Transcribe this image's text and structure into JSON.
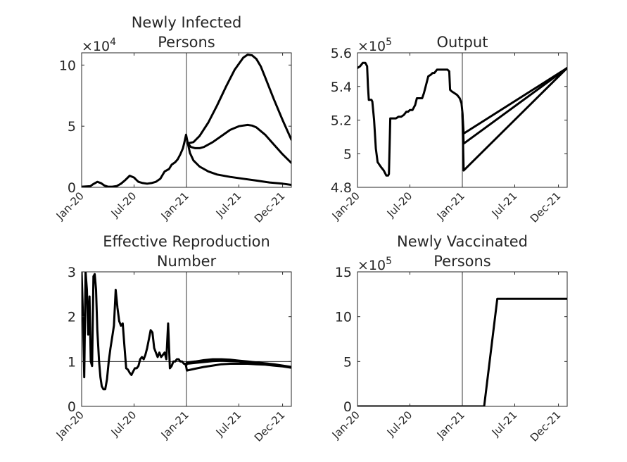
{
  "figure": {
    "background": "#ffffff",
    "line_color": "#000000",
    "text_color": "#262626"
  },
  "chart_data": [
    {
      "type": "line",
      "title": [
        "Newly Infected",
        "Persons"
      ],
      "exponent": {
        "base": "×10",
        "power": "4"
      },
      "xlabel": "",
      "ylabel": "",
      "x_ticks": [
        "Jan-20",
        "Jul-20",
        "Jan-21",
        "Jul-21",
        "Dec-21"
      ],
      "x_tick_months": [
        0,
        6,
        12,
        18,
        23
      ],
      "xlim_months": [
        0,
        24
      ],
      "ylim": [
        0,
        11
      ],
      "y_ticks": [
        0,
        5,
        10
      ],
      "y_tick_labels": [
        "0",
        "5",
        "10"
      ],
      "vline_month": 12,
      "grid": false,
      "series": [
        {
          "x": [
            0,
            1,
            1.3,
            1.8,
            2.2,
            2.6,
            3,
            3.5,
            4,
            4.5,
            5,
            5.5,
            6,
            6.2,
            6.5,
            7,
            7.5,
            8,
            8.5,
            9,
            9.5,
            10,
            10.3,
            10.7,
            11,
            11.3,
            11.6,
            11.8,
            11.95,
            12.15,
            12.4,
            12.8,
            13.5,
            14.5,
            15.5,
            17,
            18.5,
            20,
            21.5,
            23,
            24
          ],
          "y": [
            0.05,
            0.1,
            0.25,
            0.45,
            0.35,
            0.15,
            0.05,
            0.05,
            0.1,
            0.3,
            0.6,
            0.95,
            0.8,
            0.65,
            0.45,
            0.35,
            0.3,
            0.35,
            0.45,
            0.7,
            1.3,
            1.5,
            1.85,
            2.05,
            2.3,
            2.7,
            3.2,
            3.8,
            4.3,
            3.6,
            2.8,
            2.2,
            1.7,
            1.3,
            1.05,
            0.85,
            0.7,
            0.55,
            0.4,
            0.3,
            0.2
          ]
        },
        {
          "x": [
            12.15,
            12.5,
            13,
            13.5,
            14,
            15,
            16,
            17,
            18,
            19,
            19.5,
            20,
            21,
            22,
            23,
            24
          ],
          "y": [
            3.6,
            3.3,
            3.2,
            3.2,
            3.3,
            3.7,
            4.2,
            4.7,
            5.0,
            5.1,
            5.05,
            4.9,
            4.3,
            3.5,
            2.7,
            2.0
          ]
        },
        {
          "x": [
            12.15,
            12.8,
            13.5,
            14.5,
            15.5,
            16.5,
            17.5,
            18.5,
            19,
            19.5,
            20,
            20.5,
            21,
            22,
            23,
            24
          ],
          "y": [
            3.6,
            3.7,
            4.2,
            5.3,
            6.7,
            8.2,
            9.6,
            10.6,
            10.85,
            10.8,
            10.5,
            9.9,
            9.0,
            7.2,
            5.5,
            3.9
          ]
        }
      ]
    },
    {
      "type": "line",
      "title": [
        "Output"
      ],
      "exponent": {
        "base": "×10",
        "power": "5"
      },
      "xlabel": "",
      "ylabel": "",
      "x_ticks": [
        "Jan-20",
        "Jul-20",
        "Jan-21",
        "Jul-21",
        "Dec-21"
      ],
      "x_tick_months": [
        0,
        6,
        12,
        18,
        23
      ],
      "xlim_months": [
        0,
        24
      ],
      "ylim": [
        4.8,
        5.6
      ],
      "y_ticks": [
        4.8,
        5.0,
        5.2,
        5.4,
        5.6
      ],
      "y_tick_labels": [
        "4.8",
        "5",
        "5.2",
        "5.4",
        "5.6"
      ],
      "vline_month": 12,
      "grid": false,
      "series": [
        {
          "x": [
            0,
            0.3,
            0.6,
            0.9,
            1.1,
            1.2,
            1.3,
            1.6,
            1.7,
            1.9,
            2.1,
            2.3,
            2.7,
            3.0,
            3.3,
            3.5,
            3.6,
            3.75,
            4.1,
            4.4,
            4.7,
            5.0,
            5.3,
            5.6,
            5.8,
            6.0,
            6.3,
            6.6,
            6.8,
            7.1,
            7.4,
            7.6,
            7.8,
            8.1,
            8.4,
            8.6,
            8.8,
            9.1,
            9.4,
            9.7,
            10.0,
            10.3,
            10.5,
            10.6,
            10.8,
            11.1,
            11.4,
            11.7,
            11.9,
            12.0
          ],
          "y": [
            5.51,
            5.52,
            5.54,
            5.54,
            5.52,
            5.4,
            5.32,
            5.32,
            5.31,
            5.2,
            5.03,
            4.95,
            4.92,
            4.9,
            4.87,
            4.87,
            4.88,
            5.21,
            5.21,
            5.21,
            5.22,
            5.22,
            5.23,
            5.25,
            5.25,
            5.26,
            5.26,
            5.29,
            5.33,
            5.33,
            5.33,
            5.36,
            5.4,
            5.46,
            5.47,
            5.48,
            5.48,
            5.5,
            5.5,
            5.5,
            5.5,
            5.5,
            5.49,
            5.38,
            5.37,
            5.36,
            5.35,
            5.33,
            5.3,
            5.25
          ]
        },
        {
          "x": [
            12.0,
            12.15,
            24
          ],
          "y": [
            5.25,
            5.12,
            5.51
          ]
        },
        {
          "x": [
            12.0,
            12.15,
            24
          ],
          "y": [
            5.25,
            5.06,
            5.51
          ]
        },
        {
          "x": [
            12.0,
            12.15,
            24
          ],
          "y": [
            5.25,
            4.9,
            5.51
          ]
        }
      ]
    },
    {
      "type": "line",
      "title": [
        "Effective Reproduction",
        "Number"
      ],
      "exponent": null,
      "xlabel": "",
      "ylabel": "",
      "x_ticks": [
        "Jan-20",
        "Jul-20",
        "Jan-21",
        "Jul-21",
        "Dec-21"
      ],
      "x_tick_months": [
        0,
        6,
        12,
        18,
        23
      ],
      "xlim_months": [
        0,
        24
      ],
      "ylim": [
        0,
        3
      ],
      "y_ticks": [
        0,
        1,
        2,
        3
      ],
      "y_tick_labels": [
        "0",
        "1",
        "2",
        "3"
      ],
      "vline_month": 12,
      "hline_value": 1,
      "grid": false,
      "series": [
        {
          "x": [
            0,
            0.15,
            0.3,
            0.45,
            0.6,
            0.75,
            0.9,
            1.05,
            1.2,
            1.35,
            1.5,
            1.65,
            1.8,
            2.0,
            2.15,
            2.3,
            2.5,
            2.7,
            2.9,
            3.1,
            3.3,
            3.5,
            3.7,
            3.9,
            4.1,
            4.3,
            4.5,
            4.7,
            4.9,
            5.1,
            5.3,
            5.5,
            5.7,
            5.9,
            6.1,
            6.3,
            6.5,
            6.7,
            6.9,
            7.1,
            7.3,
            7.5,
            7.7,
            7.9,
            8.1,
            8.3,
            8.5,
            8.7,
            8.9,
            9.1,
            9.3,
            9.5,
            9.7,
            9.9,
            10.1,
            10.3,
            10.5,
            10.7,
            10.9,
            11.1,
            11.3,
            11.5,
            11.7,
            11.85,
            11.95
          ],
          "y": [
            3.0,
            2.0,
            0.65,
            3.0,
            2.6,
            1.6,
            2.45,
            1.0,
            0.9,
            2.9,
            2.95,
            2.6,
            1.7,
            1.0,
            0.65,
            0.45,
            0.38,
            0.38,
            0.6,
            1.0,
            1.3,
            1.55,
            1.8,
            2.6,
            2.2,
            1.9,
            1.8,
            1.85,
            1.35,
            0.85,
            0.82,
            0.75,
            0.7,
            0.78,
            0.85,
            0.85,
            0.9,
            1.05,
            1.1,
            1.05,
            1.15,
            1.3,
            1.5,
            1.7,
            1.65,
            1.3,
            1.2,
            1.1,
            1.2,
            1.1,
            1.15,
            1.2,
            1.05,
            1.85,
            0.85,
            0.9,
            1.0,
            1.0,
            1.05,
            1.05,
            1.0,
            1.0,
            0.95,
            0.95,
            0.9
          ]
        },
        {
          "x": [
            11.95,
            12.05,
            13,
            14,
            15,
            16,
            17,
            18,
            19,
            20,
            21,
            22,
            23,
            24
          ],
          "y": [
            0.9,
            0.98,
            1.0,
            1.03,
            1.05,
            1.05,
            1.04,
            1.02,
            1.0,
            0.98,
            0.96,
            0.94,
            0.91,
            0.88
          ]
        },
        {
          "x": [
            11.95,
            12.05,
            13,
            14,
            15,
            16,
            17,
            18,
            19,
            20,
            21,
            22,
            23,
            24
          ],
          "y": [
            0.9,
            0.95,
            0.97,
            0.99,
            1.01,
            1.02,
            1.01,
            1.0,
            0.98,
            0.96,
            0.94,
            0.92,
            0.9,
            0.87
          ]
        },
        {
          "x": [
            11.95,
            12.05,
            13,
            14,
            15,
            16,
            17,
            18,
            19,
            20,
            21,
            22,
            23,
            24
          ],
          "y": [
            0.9,
            0.8,
            0.84,
            0.88,
            0.91,
            0.94,
            0.95,
            0.95,
            0.95,
            0.94,
            0.93,
            0.91,
            0.89,
            0.86
          ]
        }
      ]
    },
    {
      "type": "line",
      "title": [
        "Newly Vaccinated",
        "Persons"
      ],
      "exponent": {
        "base": "×10",
        "power": "5"
      },
      "xlabel": "",
      "ylabel": "",
      "x_ticks": [
        "Jan-20",
        "Jul-20",
        "Jan-21",
        "Jul-21",
        "Dec-21"
      ],
      "x_tick_months": [
        0,
        6,
        12,
        18,
        23
      ],
      "xlim_months": [
        0,
        24
      ],
      "ylim": [
        0,
        15
      ],
      "y_ticks": [
        0,
        5,
        10,
        15
      ],
      "y_tick_labels": [
        "0",
        "5",
        "10",
        "15"
      ],
      "vline_month": 12,
      "grid": false,
      "series": [
        {
          "x": [
            0,
            14.5,
            16.0,
            24
          ],
          "y": [
            0,
            0,
            12,
            12
          ]
        }
      ]
    }
  ]
}
